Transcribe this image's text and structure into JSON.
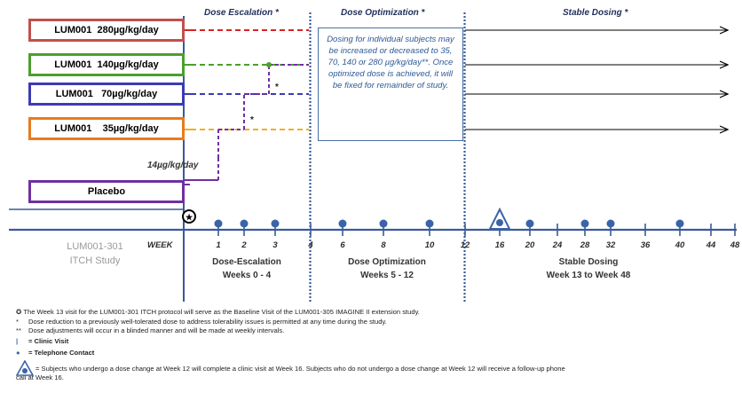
{
  "arms": [
    {
      "label": "LUM001  280µg/kg/day",
      "border": "#c0504d"
    },
    {
      "label": "LUM001  140µg/kg/day",
      "border": "#4aa02c"
    },
    {
      "label": "LUM001   70µg/kg/day",
      "border": "#3b3bb5"
    },
    {
      "label": "LUM001    35µg/kg/day",
      "border": "#e87b1e"
    },
    {
      "label": "Placebo",
      "border": "#7030a0"
    }
  ],
  "phases": {
    "escalation": "Dose  Escalation *",
    "optimization": "Dose Optimization *",
    "stable": "Stable Dosing *"
  },
  "note": "Dosing for individual subjects may be increased or decreased to 35, 70, 140 or 280 µg/kg/day**. Once optimized dose is achieved, it will be fixed for remainder of study.",
  "start_dose": "14µg/kg/day",
  "asterisk": "*",
  "study": {
    "line1": "LUM001-301",
    "line2": "ITCH Study"
  },
  "week_label": "WEEK",
  "weeks": [
    "1",
    "2",
    "3",
    "4",
    "6",
    "8",
    "10",
    "12",
    "16",
    "20",
    "24",
    "28",
    "32",
    "36",
    "40",
    "44",
    "48"
  ],
  "periods": [
    {
      "line1": "Dose-Escalation",
      "line2": "Weeks 0 - 4"
    },
    {
      "line1": "Dose Optimization",
      "line2": "Weeks 5 - 12"
    },
    {
      "line1": "Stable Dosing",
      "line2": "Week 13 to Week 48"
    }
  ],
  "footnotes": {
    "baseline": "The Week 13 visit for the LUM001-301 ITCH protocol will serve as the Baseline Visit of the LUM001-305 IMAGINE II extension study.",
    "star": "Dose reduction to a previously well-tolerated dose to address tolerability issues is permitted at any time during the study.",
    "star2": "Dose adjustments will occur in a blinded manner and will be made at weekly intervals.",
    "clinic": "= Clinic Visit",
    "phone": "= Telephone Contact",
    "week16a": "= Subjects who undergo a dose change at Week 12 will complete a clinic visit at Week 16. Subjects who do not undergo a dose change at Week 12 will receive a  follow-up phone",
    "week16b": "call at Week 16."
  },
  "colors": {
    "axis": "#3a5a98",
    "red": "#d22",
    "green": "#4aa02c",
    "blue": "#3b3bb5",
    "orange": "#f0b020",
    "purple": "#7030a0",
    "dot": "#3a64a8"
  }
}
